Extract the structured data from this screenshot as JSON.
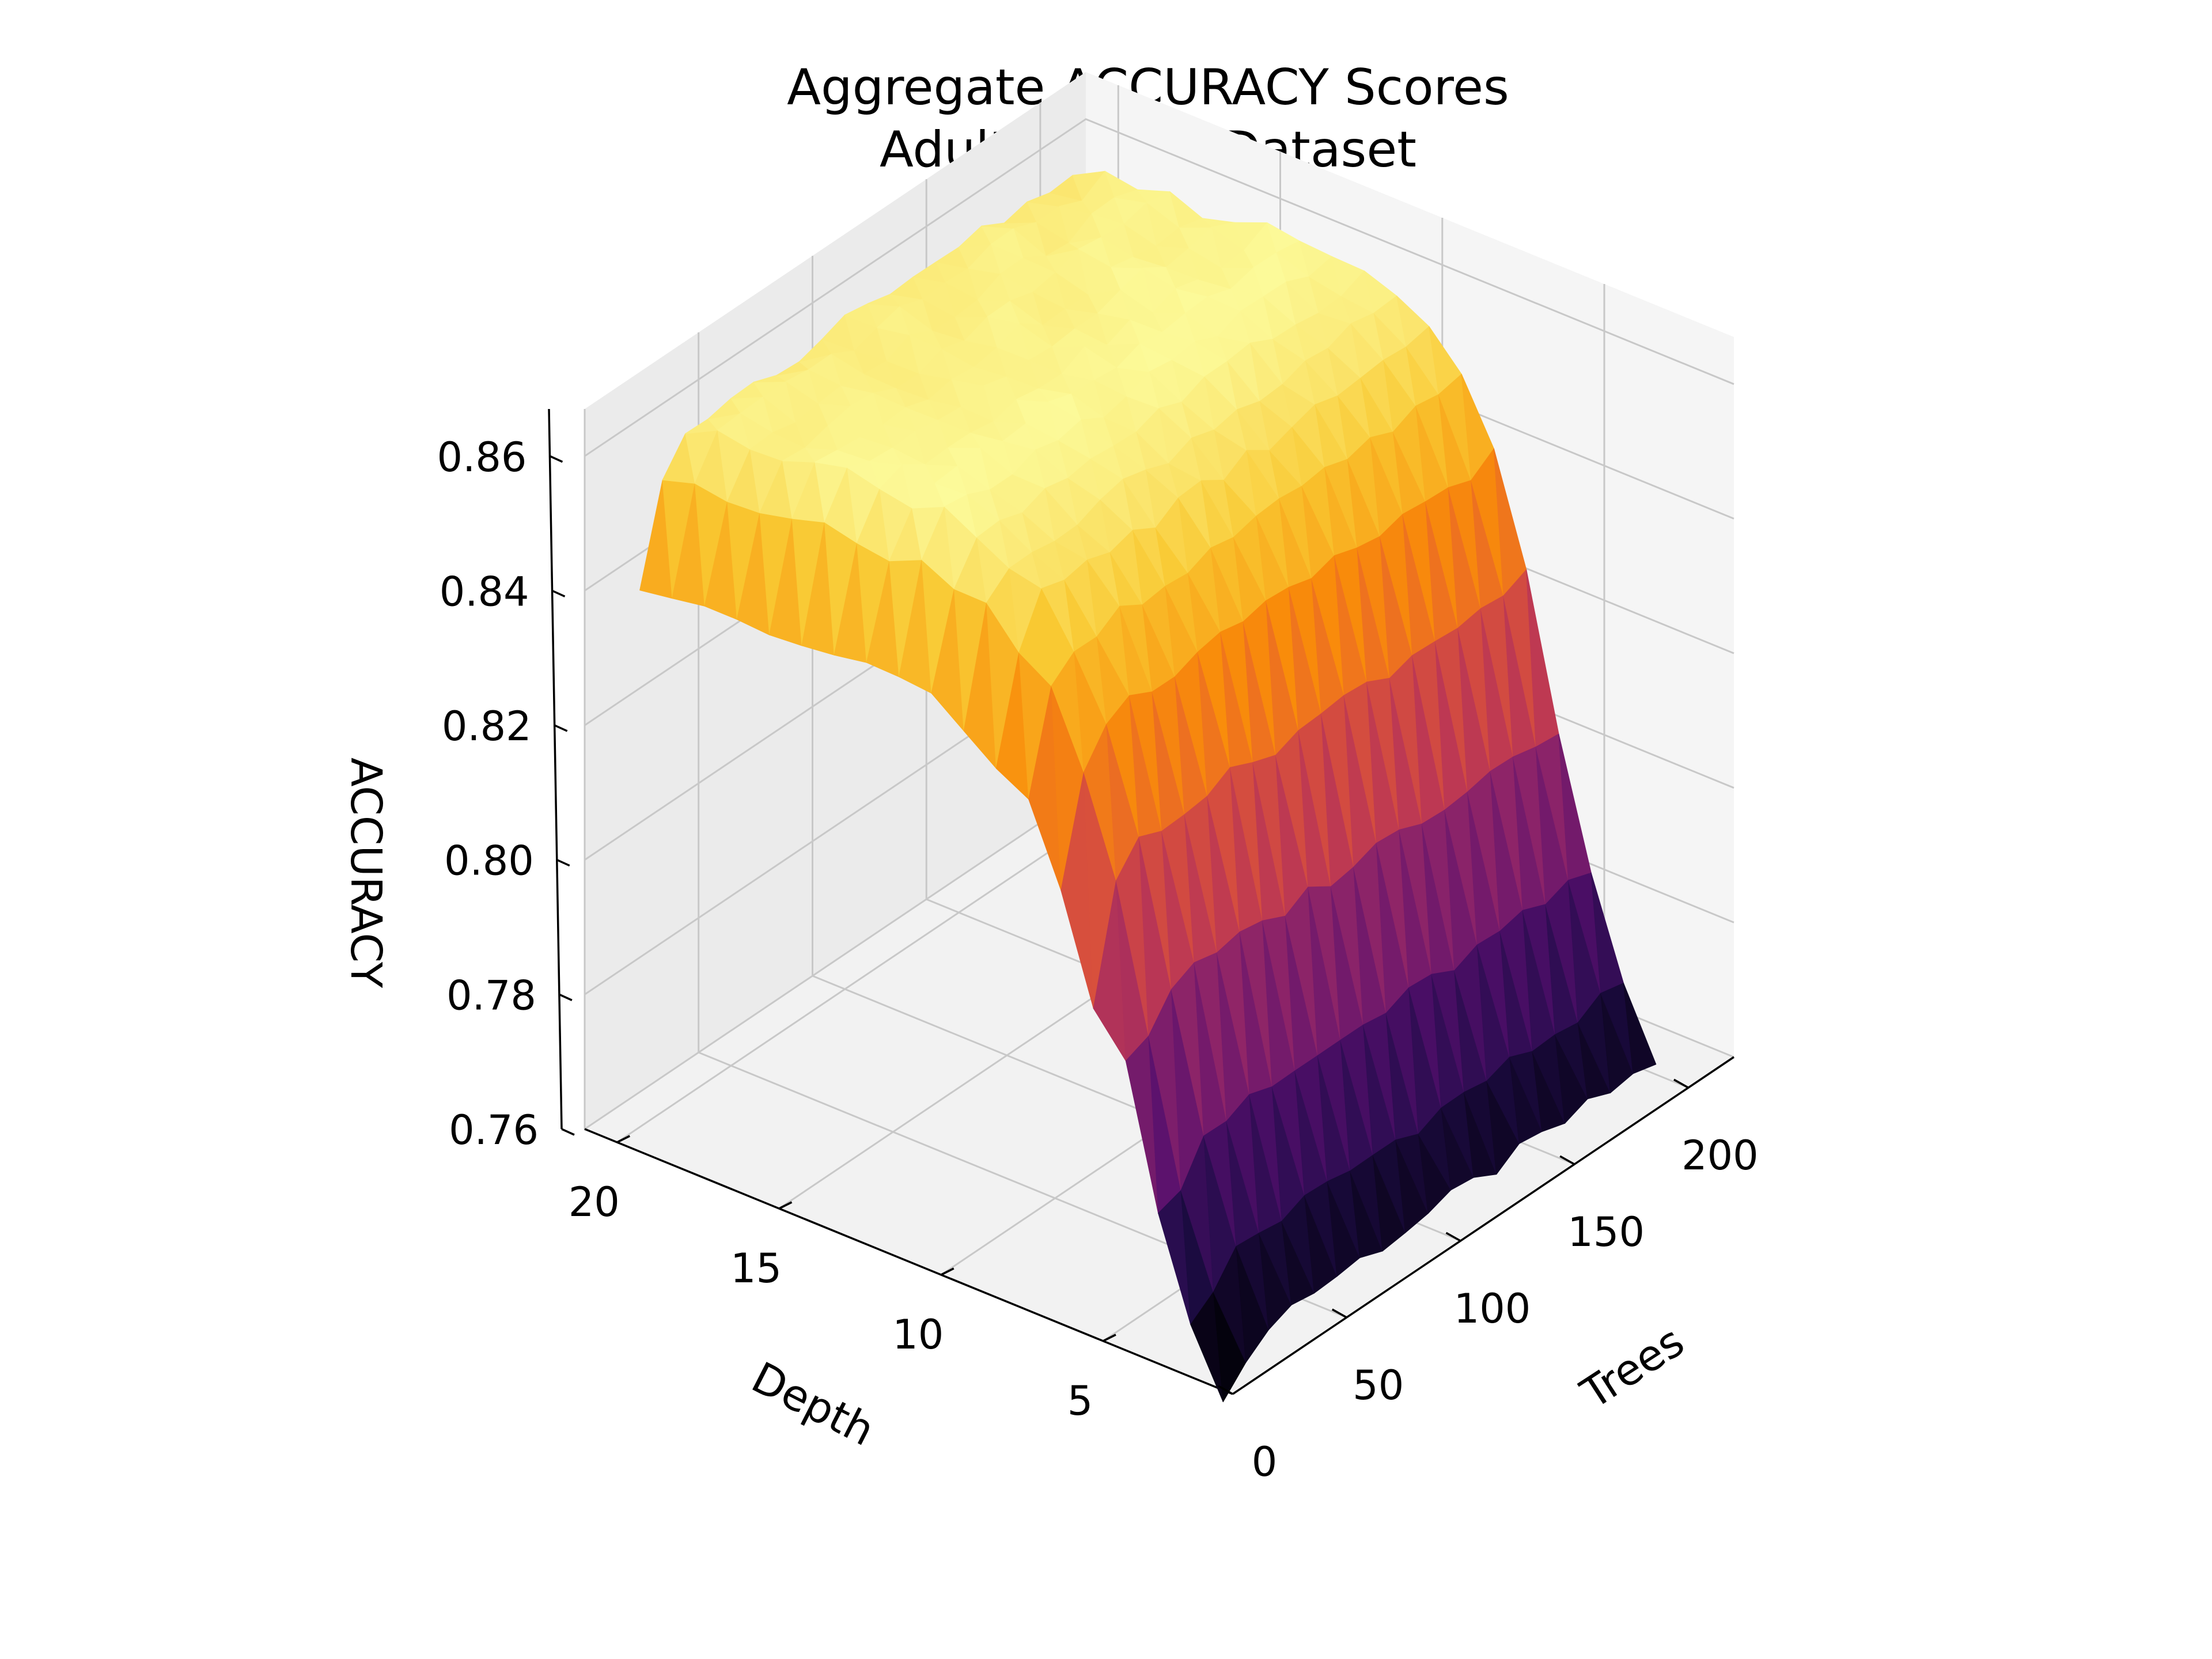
{
  "chart_data": {
    "type": "surface3d",
    "title": "Aggregate ACCURACY Scores",
    "subtitle": "Adult Income Dataset",
    "xlabel": "Trees",
    "ylabel": "Depth",
    "zlabel": "ACCURACY",
    "colormap": "inferno",
    "x_ticks": [
      "0",
      "50",
      "100",
      "150",
      "200"
    ],
    "y_ticks": [
      "5",
      "10",
      "15",
      "20"
    ],
    "z_ticks": [
      "0.76",
      "0.78",
      "0.80",
      "0.82",
      "0.84",
      "0.86"
    ],
    "xlim": [
      0,
      220
    ],
    "ylim": [
      1,
      21
    ],
    "zlim": [
      0.76,
      0.867
    ],
    "trees": [
      10,
      20,
      30,
      40,
      50,
      60,
      70,
      80,
      90,
      100,
      110,
      120,
      130,
      140,
      150,
      160,
      170,
      180,
      190,
      200
    ],
    "depth": [
      2,
      3,
      4,
      5,
      6,
      7,
      8,
      9,
      10,
      11,
      12,
      13,
      14,
      15,
      16,
      17,
      18,
      19,
      20
    ],
    "accuracy_by_depth": [
      {
        "depth": 2,
        "accuracy": 0.762
      },
      {
        "depth": 3,
        "accuracy": 0.771
      },
      {
        "depth": 4,
        "accuracy": 0.786
      },
      {
        "depth": 5,
        "accuracy": 0.806
      },
      {
        "depth": 6,
        "accuracy": 0.826
      },
      {
        "depth": 7,
        "accuracy": 0.842
      },
      {
        "depth": 8,
        "accuracy": 0.851
      },
      {
        "depth": 9,
        "accuracy": 0.856
      },
      {
        "depth": 10,
        "accuracy": 0.859
      },
      {
        "depth": 11,
        "accuracy": 0.861
      },
      {
        "depth": 12,
        "accuracy": 0.862
      },
      {
        "depth": 13,
        "accuracy": 0.862
      },
      {
        "depth": 14,
        "accuracy": 0.862
      },
      {
        "depth": 15,
        "accuracy": 0.862
      },
      {
        "depth": 16,
        "accuracy": 0.861
      },
      {
        "depth": 17,
        "accuracy": 0.861
      },
      {
        "depth": 18,
        "accuracy": 0.86
      },
      {
        "depth": 19,
        "accuracy": 0.86
      },
      {
        "depth": 20,
        "accuracy": 0.859
      }
    ],
    "trees_10_penalty": 0.02,
    "grid": true,
    "legend": "none"
  }
}
